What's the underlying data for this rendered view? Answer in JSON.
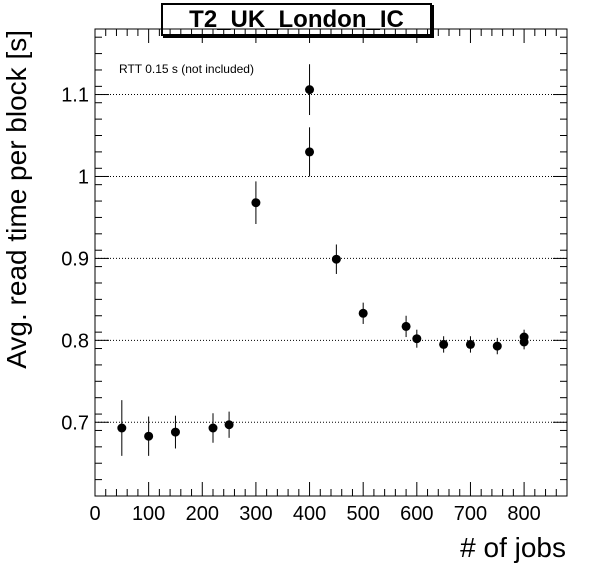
{
  "chart_data": {
    "type": "scatter",
    "title": "T2_UK_London_IC",
    "xlabel": "# of jobs",
    "ylabel": "Avg. read time per block [s]",
    "annotation": "RTT 0.15 s (not included)",
    "xlim": [
      0,
      880
    ],
    "ylim": [
      0.61,
      1.18
    ],
    "x_ticks": [
      0,
      100,
      200,
      300,
      400,
      500,
      600,
      700,
      800
    ],
    "x_tick_labels": [
      "0",
      "100",
      "200",
      "300",
      "400",
      "500",
      "600",
      "700",
      "800"
    ],
    "y_ticks": [
      0.7,
      0.8,
      0.9,
      1.0,
      1.1
    ],
    "y_tick_labels": [
      "0.7",
      "0.8",
      "0.9",
      "1",
      "1.1"
    ],
    "grid": "horizontal dotted",
    "points": [
      {
        "x": 50,
        "y": 0.693,
        "err": 0.034
      },
      {
        "x": 100,
        "y": 0.683,
        "err": 0.024
      },
      {
        "x": 150,
        "y": 0.688,
        "err": 0.02
      },
      {
        "x": 220,
        "y": 0.693,
        "err": 0.018
      },
      {
        "x": 250,
        "y": 0.697,
        "err": 0.016
      },
      {
        "x": 300,
        "y": 0.968,
        "err": 0.026
      },
      {
        "x": 400,
        "y": 1.106,
        "err": 0.031
      },
      {
        "x": 400,
        "y": 1.03,
        "err": 0.03
      },
      {
        "x": 450,
        "y": 0.899,
        "err": 0.018
      },
      {
        "x": 500,
        "y": 0.833,
        "err": 0.013
      },
      {
        "x": 580,
        "y": 0.817,
        "err": 0.013
      },
      {
        "x": 600,
        "y": 0.802,
        "err": 0.011
      },
      {
        "x": 650,
        "y": 0.795,
        "err": 0.01
      },
      {
        "x": 700,
        "y": 0.795,
        "err": 0.01
      },
      {
        "x": 750,
        "y": 0.793,
        "err": 0.01
      },
      {
        "x": 800,
        "y": 0.804,
        "err": 0.009
      },
      {
        "x": 800,
        "y": 0.798,
        "err": 0.009
      }
    ]
  }
}
